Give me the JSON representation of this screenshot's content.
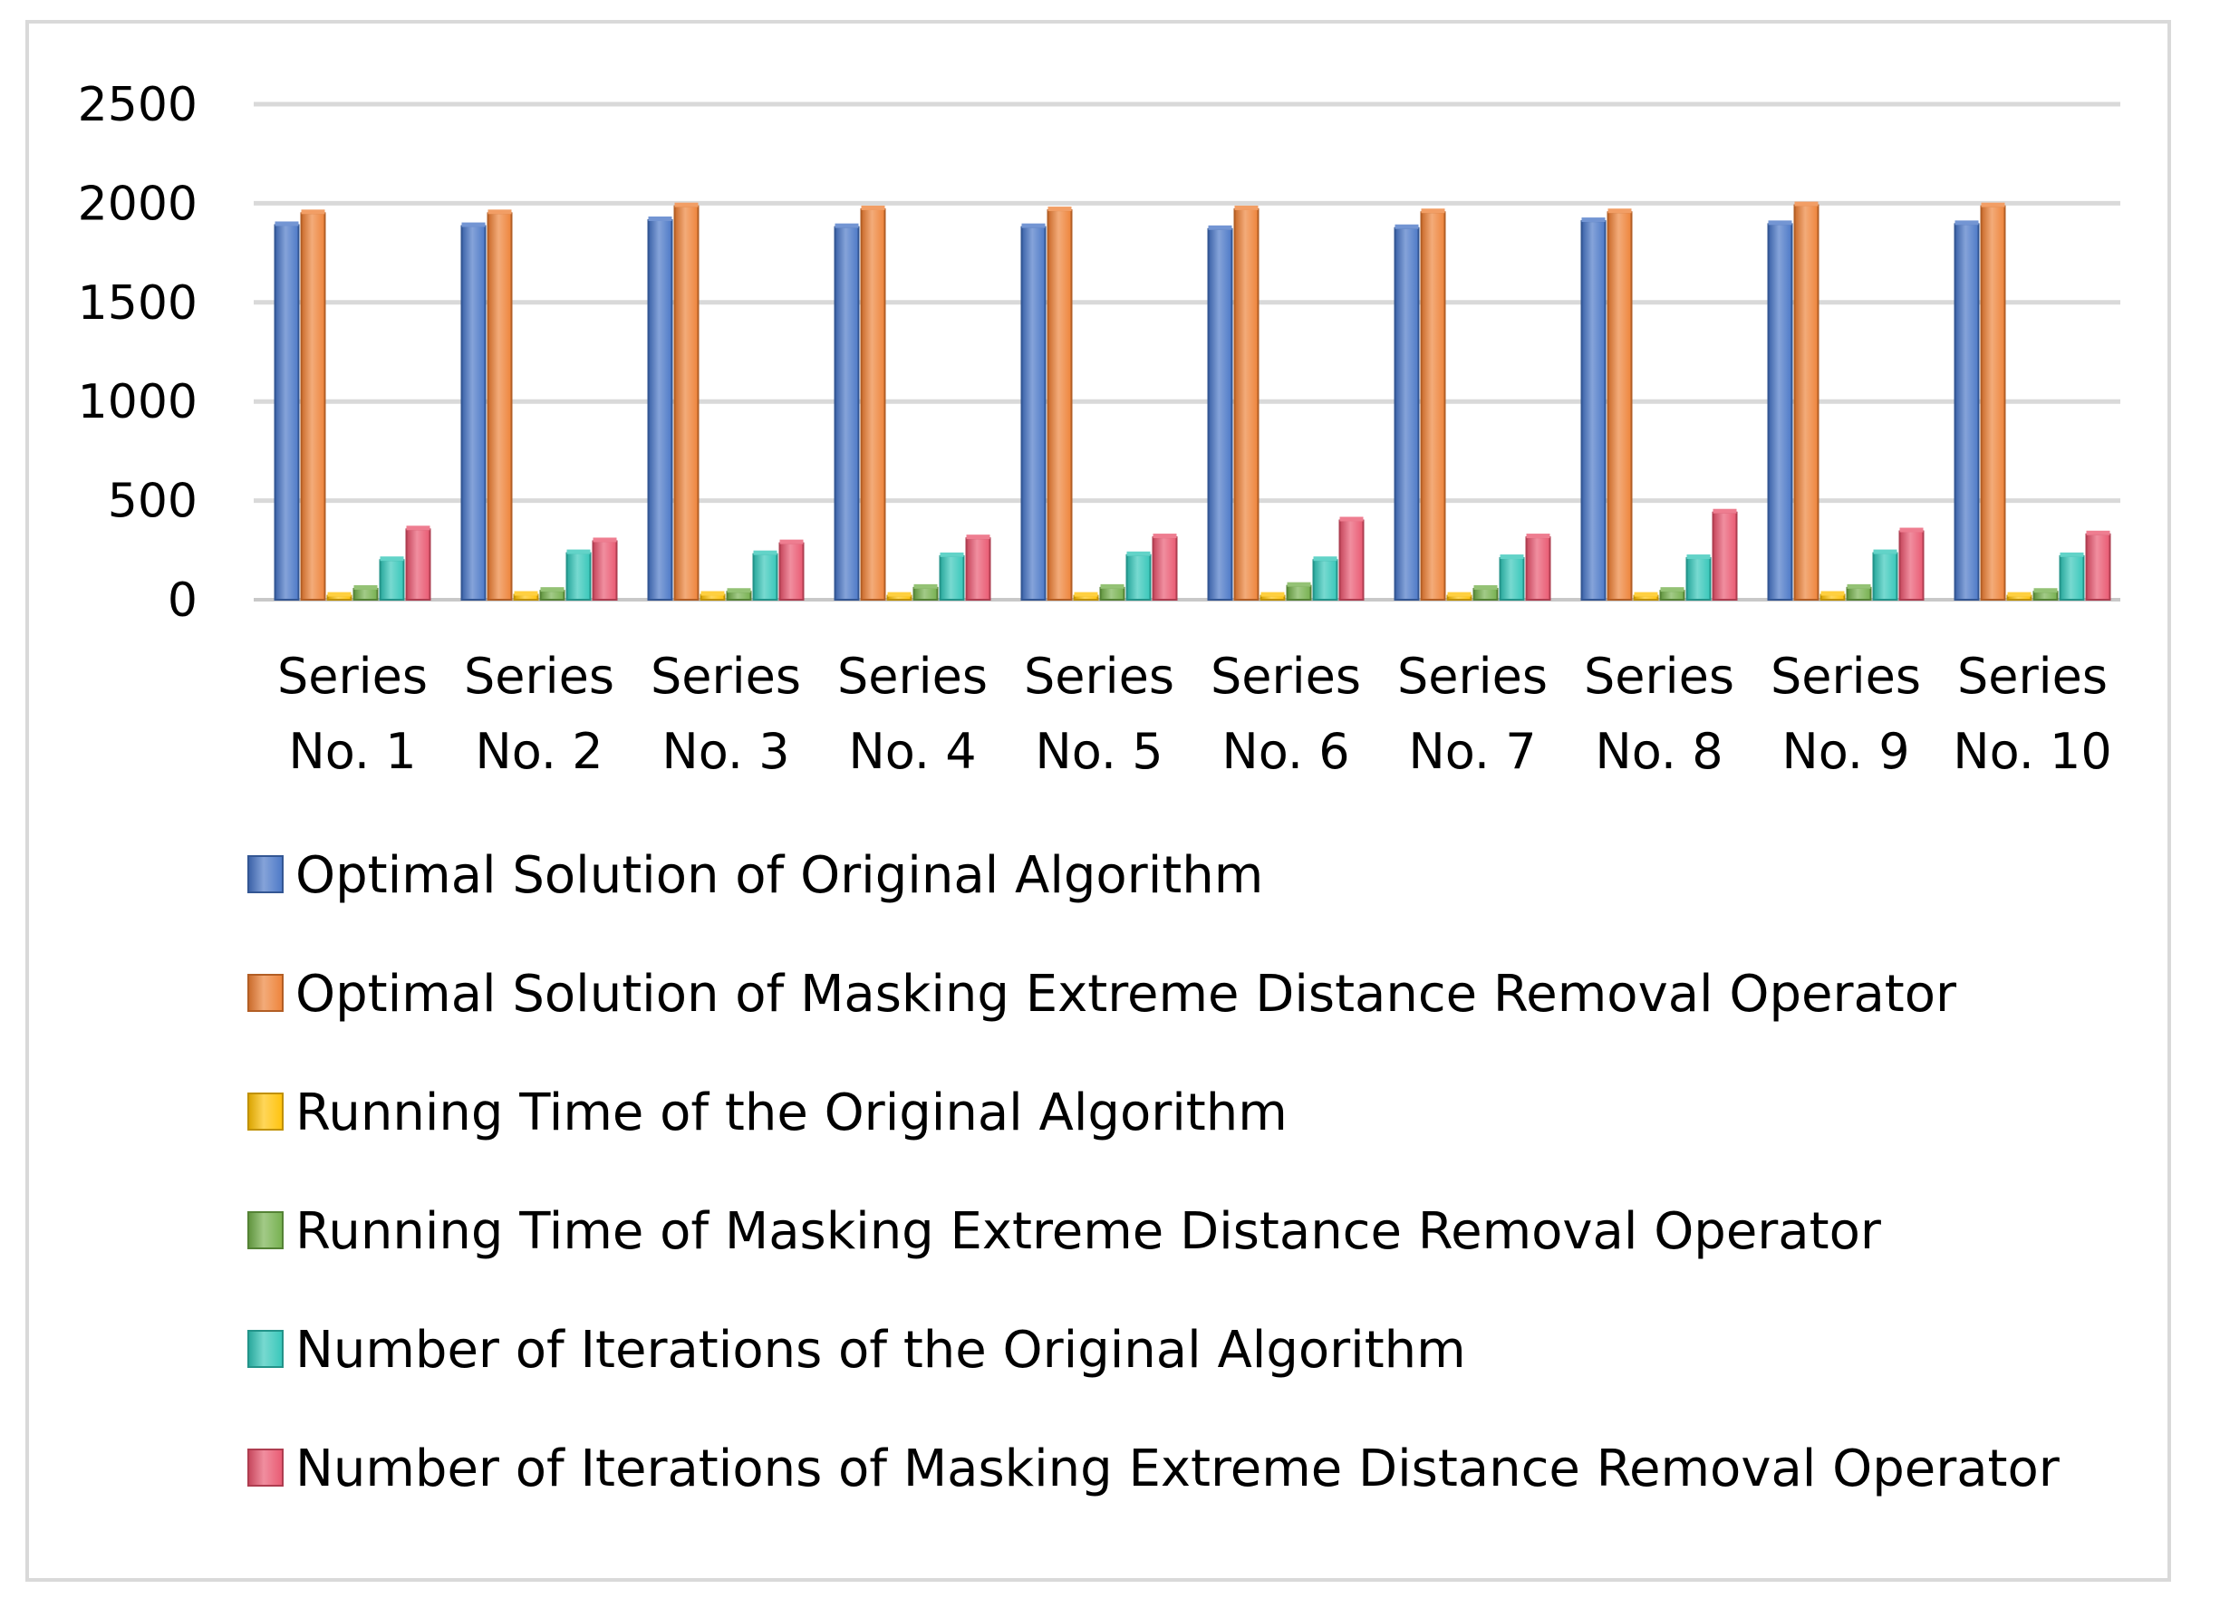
{
  "chart_data": {
    "type": "bar",
    "title": "",
    "xlabel": "",
    "ylabel": "",
    "ylim": [
      0,
      2500
    ],
    "yticks": [
      "0",
      "500",
      "1000",
      "1500",
      "2000",
      "2500"
    ],
    "grid": true,
    "legend_position": "bottom",
    "categories": [
      [
        "Series",
        "No. 1"
      ],
      [
        "Series",
        "No. 2"
      ],
      [
        "Series",
        "No. 3"
      ],
      [
        "Series",
        "No. 4"
      ],
      [
        "Series",
        "No. 5"
      ],
      [
        "Series",
        "No. 6"
      ],
      [
        "Series",
        "No. 7"
      ],
      [
        "Series",
        "No. 8"
      ],
      [
        "Series",
        "No. 9"
      ],
      [
        "Series",
        "No. 10"
      ]
    ],
    "series": [
      {
        "name": "Optimal Solution of Original Algorithm",
        "color": "#4472c4",
        "values": [
          1890,
          1885,
          1915,
          1880,
          1880,
          1870,
          1875,
          1910,
          1895,
          1895
        ]
      },
      {
        "name": "Optimal Solution of Masking Extreme Distance Removal Operator",
        "color": "#ed7d31",
        "values": [
          1950,
          1950,
          1985,
          1970,
          1965,
          1970,
          1955,
          1955,
          1990,
          1985
        ]
      },
      {
        "name": "Running Time of the Original Algorithm",
        "color": "#ffc000",
        "values": [
          20,
          25,
          25,
          20,
          20,
          20,
          20,
          20,
          25,
          20
        ]
      },
      {
        "name": "Running Time of Masking Extreme Distance Removal Operator",
        "color": "#70ad47",
        "values": [
          55,
          45,
          40,
          60,
          60,
          70,
          55,
          45,
          60,
          40
        ]
      },
      {
        "name": "Number of Iterations of the Original Algorithm",
        "color": "#2ec4b6",
        "values": [
          200,
          235,
          230,
          220,
          225,
          200,
          210,
          210,
          235,
          220
        ]
      },
      {
        "name": "Number of Iterations of Masking Extreme Distance Removal Operator",
        "color": "#e8516b",
        "values": [
          355,
          295,
          285,
          310,
          315,
          400,
          315,
          440,
          345,
          330
        ]
      }
    ]
  }
}
